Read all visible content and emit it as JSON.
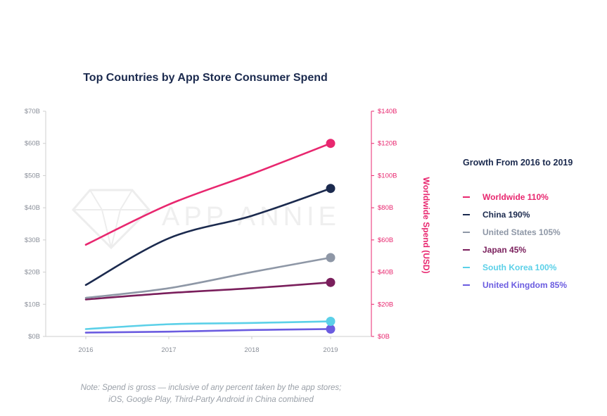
{
  "chart_data": {
    "type": "line",
    "title": "Top Countries by App Store Consumer Spend",
    "x": [
      "2016",
      "2017",
      "2018",
      "2019"
    ],
    "ylim": [
      0,
      70
    ],
    "y_ticks": [
      "$0B",
      "$10B",
      "$20B",
      "$30B",
      "$40B",
      "$50B",
      "$60B",
      "$70B"
    ],
    "y2label": "Worldwide Spend (USD)",
    "y2lim": [
      0,
      140
    ],
    "y2_ticks": [
      "$0B",
      "$20B",
      "$40B",
      "$60B",
      "$80B",
      "$100B",
      "$120B",
      "$140B"
    ],
    "grid": false,
    "legend_title": "Growth From 2016 to 2019",
    "legend_position": "right",
    "series": [
      {
        "name": "Worldwide 110%",
        "axis": "right",
        "values": [
          57,
          82,
          101,
          120
        ],
        "color": "#e8276f"
      },
      {
        "name": "China 190%",
        "axis": "left",
        "values": [
          16,
          30.5,
          37.5,
          46
        ],
        "color": "#1b2a4e"
      },
      {
        "name": "United States 105%",
        "axis": "left",
        "values": [
          12,
          15,
          20,
          24.5
        ],
        "color": "#8e97a6"
      },
      {
        "name": "Japan 45%",
        "axis": "left",
        "values": [
          11.5,
          13.5,
          15,
          16.8
        ],
        "color": "#7a1f5c"
      },
      {
        "name": "South Korea 100%",
        "axis": "left",
        "values": [
          2.3,
          3.8,
          4.2,
          4.7
        ],
        "color": "#5bd0e8"
      },
      {
        "name": "United Kingdom 85%",
        "axis": "left",
        "values": [
          1.2,
          1.5,
          2,
          2.3
        ],
        "color": "#6b5ce0"
      }
    ],
    "watermark": "APP ANNIE"
  },
  "note": {
    "line1": "Note: Spend is gross — inclusive of any percent taken by the app stores;",
    "line2": "iOS, Google Play, Third-Party Android in China combined"
  }
}
